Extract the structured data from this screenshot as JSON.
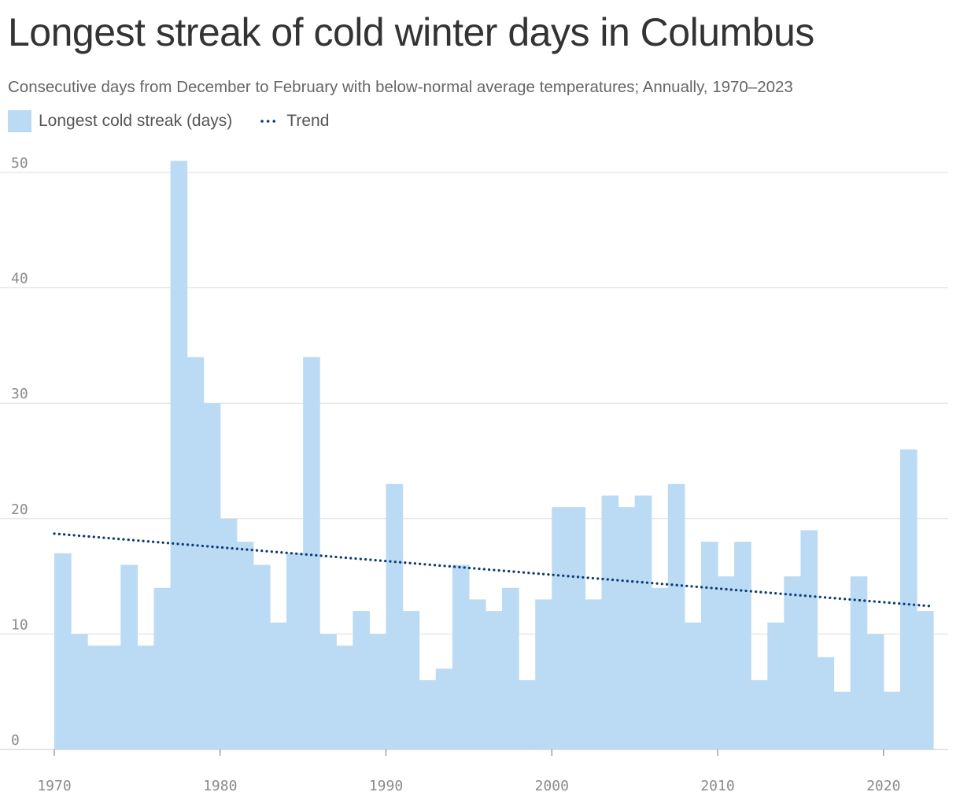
{
  "title": "Longest streak of cold winter days in Columbus",
  "subtitle": "Consecutive days from December to February with below-normal average temperatures; Annually, 1970–2023",
  "legend": {
    "bar_label": "Longest cold streak (days)",
    "trend_label": "Trend"
  },
  "colors": {
    "bar": "#bbdbf5",
    "trend": "#0d3b74",
    "grid": "#dedede",
    "axis": "#c9c9c9"
  },
  "chart_data": {
    "type": "bar",
    "title": "Longest streak of cold winter days in Columbus",
    "xlabel": "",
    "ylabel": "",
    "x": [
      1971,
      1972,
      1973,
      1974,
      1975,
      1976,
      1977,
      1978,
      1979,
      1980,
      1981,
      1982,
      1983,
      1984,
      1985,
      1986,
      1987,
      1988,
      1989,
      1990,
      1991,
      1992,
      1993,
      1994,
      1995,
      1996,
      1997,
      1998,
      1999,
      2000,
      2001,
      2002,
      2003,
      2004,
      2005,
      2006,
      2007,
      2008,
      2009,
      2010,
      2011,
      2012,
      2013,
      2014,
      2015,
      2016,
      2017,
      2018,
      2019,
      2020,
      2021,
      2022,
      2023
    ],
    "values": [
      17,
      10,
      9,
      9,
      16,
      9,
      14,
      51,
      34,
      30,
      20,
      18,
      16,
      11,
      17,
      34,
      10,
      9,
      12,
      10,
      23,
      12,
      6,
      7,
      16,
      13,
      12,
      14,
      6,
      13,
      21,
      21,
      13,
      22,
      21,
      22,
      14,
      23,
      11,
      18,
      15,
      18,
      6,
      11,
      15,
      19,
      8,
      5,
      15,
      10,
      5,
      26,
      12
    ],
    "series": [
      {
        "name": "Longest cold streak (days)",
        "type": "bar"
      },
      {
        "name": "Trend",
        "type": "line",
        "x": [
          1970,
          2023
        ],
        "values": [
          18.7,
          12.4
        ]
      }
    ],
    "xlim": [
      1970,
      2023
    ],
    "ylim": [
      0,
      50
    ],
    "x_ticks": [
      "1970",
      "1980",
      "1990",
      "2000",
      "2010",
      "2020"
    ],
    "y_ticks": [
      "0",
      "10",
      "20",
      "30",
      "40",
      "50"
    ],
    "grid": true,
    "legend_position": "top-left"
  }
}
